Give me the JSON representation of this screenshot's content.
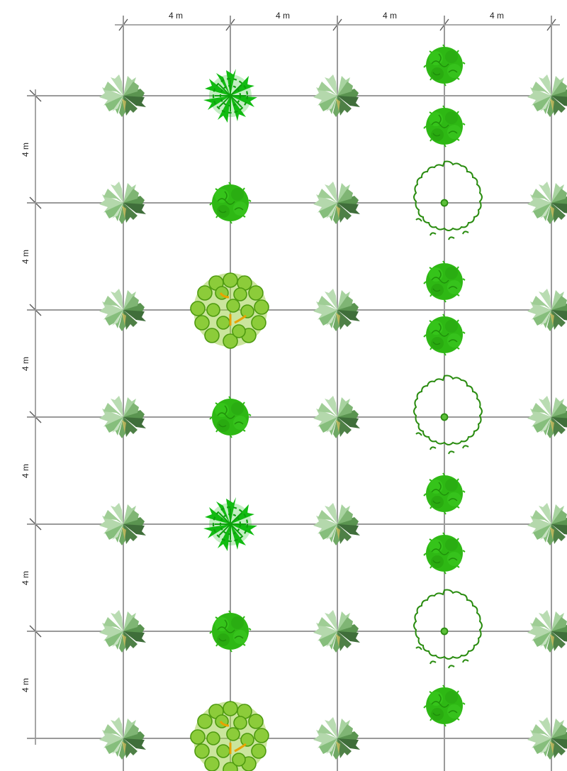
{
  "dimensions": {
    "top": [
      "4 m",
      "4 m",
      "4 m",
      "4 m"
    ],
    "left": [
      "4 m",
      "4 m",
      "4 m",
      "4 m",
      "4 m",
      "4 m"
    ]
  },
  "colors": {
    "grid": "#9a9a9a",
    "palm_light": "#a8d0a0",
    "palm_mid": "#6fa864",
    "palm_dark": "#3f6e3a",
    "shrub_green": "#2eb814",
    "shrub_dark": "#1f8f0a",
    "star_tree": "#11bb11",
    "canopy_green": "#7cc421",
    "canopy_outline": "#4e9a10",
    "trunk_orange": "#e8a200",
    "outline_tree": "#2a8c10"
  },
  "symbols": {
    "col0": [
      "palm-icon",
      "palm-icon",
      "palm-icon",
      "palm-icon",
      "palm-icon",
      "palm-icon",
      "palm-icon"
    ],
    "col1": [
      "star-tree-icon",
      "shrub-icon",
      "canopy-tree-icon",
      "shrub-icon",
      "star-tree-icon",
      "shrub-icon",
      "canopy-tree-icon"
    ],
    "col2": [
      "palm-icon",
      "palm-icon",
      "palm-icon",
      "palm-icon",
      "palm-icon",
      "palm-icon",
      "palm-icon"
    ],
    "col3": [
      "shrub-icon",
      "shrub-icon",
      "outline-tree-icon",
      "shrub-icon",
      "shrub-icon",
      "outline-tree-icon",
      "shrub-icon",
      "shrub-icon",
      "outline-tree-icon",
      "shrub-icon"
    ],
    "col4": [
      "palm-icon",
      "palm-icon",
      "palm-icon",
      "palm-icon",
      "palm-icon",
      "palm-icon",
      "palm-icon"
    ]
  }
}
